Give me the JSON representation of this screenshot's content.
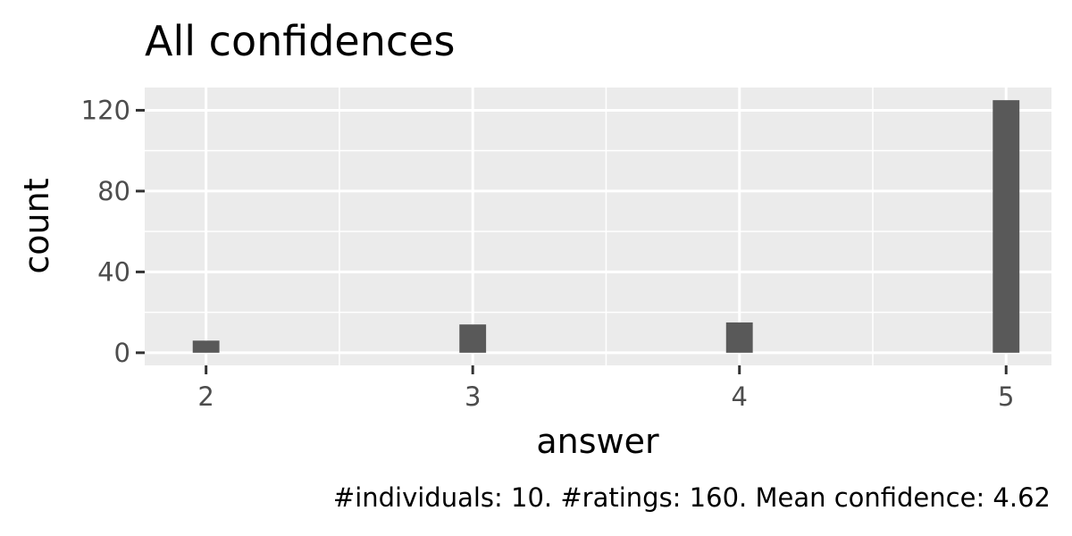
{
  "chart_data": {
    "type": "bar",
    "title": "All confidences",
    "xlabel": "answer",
    "ylabel": "count",
    "caption": "#individuals: 10. #ratings: 160. Mean confidence: 4.62",
    "x": [
      2,
      3,
      4,
      5
    ],
    "values": [
      6,
      14,
      15,
      125
    ],
    "x_ticks": [
      2,
      3,
      4,
      5
    ],
    "y_ticks": [
      0,
      40,
      80,
      120
    ],
    "xlim": [
      1.77,
      5.17
    ],
    "ylim": [
      -6.25,
      131.25
    ],
    "grid": true,
    "legend": "none",
    "colors": {
      "panel": "#ebebeb",
      "grid": "#ffffff",
      "bar": "#595959",
      "tick": "#333333"
    }
  }
}
